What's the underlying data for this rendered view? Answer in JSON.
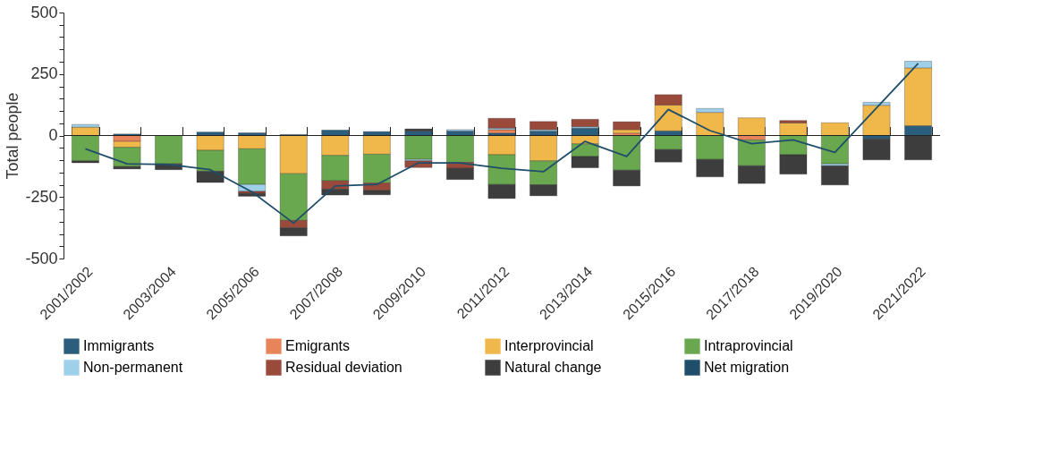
{
  "chart_data": {
    "type": "bar",
    "stacked": true,
    "ylabel": "Total people",
    "legend": "bottom",
    "grid": false,
    "categories": [
      "2001/2002",
      null,
      "2003/2004",
      null,
      "2005/2006",
      null,
      "2007/2008",
      null,
      "2009/2010",
      null,
      "2011/2012",
      null,
      "2013/2014",
      null,
      "2015/2016",
      null,
      "2017/2018",
      null,
      "2019/2020",
      null,
      "2021/2022"
    ],
    "ylim": [
      -500,
      500
    ],
    "ref_lines": [
      {
        "axis": "y",
        "value": 0,
        "color": "#222222"
      }
    ],
    "yticks": [
      -500,
      {
        "value": -450,
        "label": null
      },
      {
        "value": -400,
        "label": null
      },
      {
        "value": -350,
        "label": null
      },
      {
        "value": -300,
        "label": null
      },
      -250,
      {
        "value": -200,
        "label": null
      },
      {
        "value": -150,
        "label": null
      },
      {
        "value": -100,
        "label": null
      },
      {
        "value": -50,
        "label": null
      },
      0,
      {
        "value": 50,
        "label": null
      },
      {
        "value": 100,
        "label": null
      },
      {
        "value": 150,
        "label": null
      },
      {
        "value": 200,
        "label": null
      },
      250,
      {
        "value": 300,
        "label": null
      },
      {
        "value": 350,
        "label": null
      },
      {
        "value": 400,
        "label": null
      },
      {
        "value": 450,
        "label": null
      },
      500
    ],
    "series": [
      {
        "name": "Immigrants",
        "color": "#2b5d7c",
        "values": [
          null,
          6,
          null,
          14,
          11,
          4,
          22,
          16,
          18,
          18,
          10,
          18,
          30,
          null,
          19,
          null,
          null,
          null,
          null,
          -14,
          40
        ]
      },
      {
        "name": "Emigrants",
        "color": "#e8845a",
        "values": [
          null,
          -24,
          null,
          null,
          null,
          null,
          null,
          null,
          null,
          null,
          14,
          null,
          null,
          10,
          null,
          null,
          -18,
          null,
          null,
          null,
          null
        ]
      },
      {
        "name": "Interprovincial",
        "color": "#f0b84a",
        "values": [
          34,
          -24,
          null,
          -60,
          -54,
          -155,
          -81,
          -76,
          null,
          null,
          -78,
          -103,
          -34,
          14,
          105,
          94,
          72,
          51,
          52,
          123,
          235
        ]
      },
      {
        "name": "Intraprovincial",
        "color": "#6aa84f",
        "values": [
          -103,
          -78,
          -115,
          -85,
          -145,
          -190,
          -103,
          -117,
          -97,
          -109,
          -121,
          -97,
          -51,
          -141,
          -57,
          -97,
          -105,
          -78,
          -115,
          null,
          null
        ]
      },
      {
        "name": "Non-permanent",
        "color": "#9fd0ea",
        "values": [
          11,
          null,
          null,
          null,
          -28,
          null,
          null,
          null,
          -6,
          6,
          6,
          6,
          6,
          null,
          null,
          16,
          null,
          null,
          -8,
          12,
          27
        ]
      },
      {
        "name": "Residual deviation",
        "color": "#9a4a3a",
        "values": [
          null,
          null,
          null,
          null,
          -8,
          -30,
          -34,
          -30,
          -27,
          -24,
          40,
          33,
          30,
          32,
          42,
          null,
          null,
          10,
          null,
          null,
          null
        ]
      },
      {
        "name": "Natural change",
        "color": "#3d3d3d",
        "values": [
          -8,
          -10,
          -24,
          -46,
          -12,
          -33,
          -24,
          -18,
          9,
          -46,
          -57,
          -45,
          -46,
          -64,
          -51,
          -71,
          -72,
          -79,
          -78,
          -85,
          -99
        ]
      },
      {
        "name": "Net migration",
        "type": "line",
        "color": "#1f4e6b",
        "values": [
          -54,
          -115,
          -118,
          -139,
          -229,
          -356,
          -205,
          -199,
          -111,
          -111,
          -133,
          -147,
          -24,
          -85,
          106,
          20,
          -33,
          -18,
          -69,
          112,
          293
        ]
      }
    ]
  }
}
